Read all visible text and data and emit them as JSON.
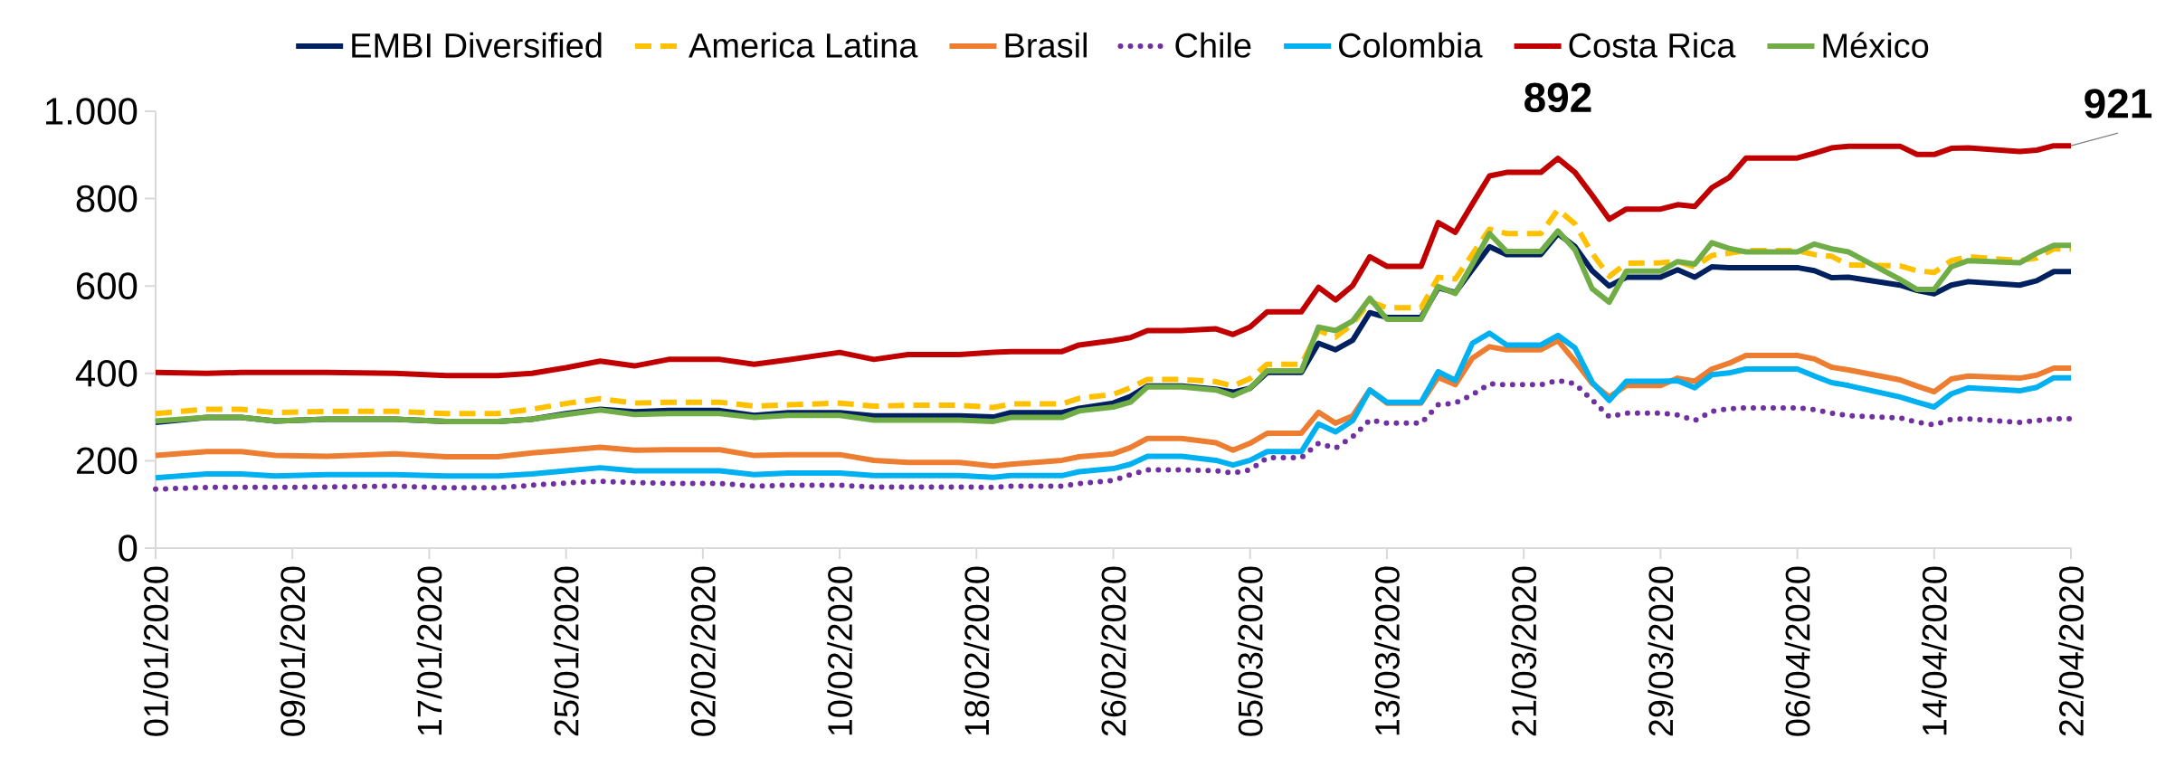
{
  "chart_data": {
    "type": "line",
    "x": [
      "2020-01-01",
      "2020-01-04",
      "2020-01-06",
      "2020-01-08",
      "2020-01-11",
      "2020-01-15",
      "2020-01-18",
      "2020-01-21",
      "2020-01-23",
      "2020-01-25",
      "2020-01-27",
      "2020-01-29",
      "2020-01-31",
      "2020-02-03",
      "2020-02-05",
      "2020-02-07",
      "2020-02-10",
      "2020-02-12",
      "2020-02-14",
      "2020-02-17",
      "2020-02-19",
      "2020-02-20",
      "2020-02-23",
      "2020-02-24",
      "2020-02-26",
      "2020-02-27",
      "2020-02-28",
      "2020-03-01",
      "2020-03-03",
      "2020-03-04",
      "2020-03-05",
      "2020-03-06",
      "2020-03-08",
      "2020-03-09",
      "2020-03-10",
      "2020-03-11",
      "2020-03-12",
      "2020-03-13",
      "2020-03-15",
      "2020-03-16",
      "2020-03-17",
      "2020-03-18",
      "2020-03-19",
      "2020-03-20",
      "2020-03-22",
      "2020-03-23",
      "2020-03-24",
      "2020-03-25",
      "2020-03-26",
      "2020-03-27",
      "2020-03-29",
      "2020-03-30",
      "2020-03-31",
      "2020-04-01",
      "2020-04-02",
      "2020-04-03",
      "2020-04-06",
      "2020-04-07",
      "2020-04-08",
      "2020-04-09",
      "2020-04-12",
      "2020-04-13",
      "2020-04-14",
      "2020-04-15",
      "2020-04-16",
      "2020-04-19",
      "2020-04-20",
      "2020-04-21",
      "2020-04-22"
    ],
    "series": [
      {
        "name": "EMBI Diversified",
        "color": "#002060",
        "line_style": "solid",
        "values": [
          288,
          299,
          299,
          291,
          295,
          295,
          290,
          290,
          295,
          308,
          318,
          312,
          315,
          315,
          304,
          310,
          310,
          303,
          303,
          303,
          300,
          310,
          310,
          320,
          332,
          347,
          371,
          371,
          364,
          357,
          366,
          402,
          402,
          469,
          454,
          476,
          539,
          528,
          528,
          596,
          585,
          638,
          690,
          672,
          672,
          720,
          690,
          635,
          600,
          620,
          620,
          637,
          620,
          644,
          642,
          642,
          642,
          635,
          619,
          620,
          602,
          590,
          582,
          602,
          610,
          602,
          612,
          633,
          633
        ]
      },
      {
        "name": "America Latina",
        "color": "#ffc000",
        "line_style": "dashed",
        "values": [
          308,
          318,
          318,
          310,
          313,
          313,
          308,
          308,
          318,
          331,
          342,
          332,
          334,
          334,
          325,
          328,
          332,
          325,
          327,
          327,
          322,
          330,
          330,
          343,
          352,
          367,
          386,
          386,
          381,
          371,
          388,
          421,
          421,
          498,
          483,
          513,
          565,
          550,
          550,
          620,
          616,
          673,
          730,
          720,
          720,
          775,
          742,
          675,
          622,
          652,
          653,
          656,
          644,
          670,
          675,
          681,
          681,
          672,
          668,
          648,
          646,
          635,
          631,
          658,
          667,
          658,
          664,
          685,
          685
        ]
      },
      {
        "name": "Brasil",
        "color": "#ed7d31",
        "line_style": "solid",
        "values": [
          212,
          221,
          221,
          212,
          210,
          216,
          209,
          209,
          218,
          224,
          231,
          224,
          225,
          225,
          212,
          214,
          214,
          201,
          196,
          196,
          188,
          192,
          201,
          209,
          216,
          230,
          251,
          251,
          241,
          224,
          240,
          263,
          263,
          311,
          286,
          303,
          362,
          332,
          332,
          391,
          374,
          435,
          461,
          454,
          454,
          475,
          428,
          377,
          346,
          372,
          372,
          389,
          382,
          410,
          423,
          441,
          441,
          433,
          414,
          408,
          385,
          371,
          358,
          387,
          394,
          389,
          396,
          412,
          412
        ]
      },
      {
        "name": "Chile",
        "color": "#7030a0",
        "line_style": "dotted",
        "values": [
          135,
          139,
          139,
          139,
          140,
          142,
          138,
          138,
          144,
          149,
          153,
          150,
          148,
          148,
          142,
          144,
          144,
          140,
          140,
          140,
          139,
          142,
          142,
          148,
          155,
          168,
          179,
          179,
          177,
          172,
          179,
          207,
          207,
          240,
          229,
          255,
          293,
          286,
          286,
          328,
          332,
          351,
          376,
          374,
          374,
          384,
          376,
          339,
          301,
          309,
          309,
          305,
          292,
          313,
          319,
          321,
          321,
          317,
          309,
          303,
          298,
          288,
          282,
          295,
          296,
          288,
          292,
          296,
          296
        ]
      },
      {
        "name": "Colombia",
        "color": "#00b0f0",
        "line_style": "solid",
        "values": [
          161,
          170,
          170,
          165,
          168,
          168,
          165,
          165,
          170,
          177,
          184,
          177,
          177,
          177,
          168,
          172,
          172,
          166,
          166,
          166,
          162,
          166,
          166,
          175,
          182,
          192,
          210,
          210,
          201,
          190,
          201,
          221,
          221,
          284,
          266,
          292,
          362,
          334,
          334,
          404,
          384,
          469,
          492,
          465,
          465,
          487,
          458,
          380,
          338,
          382,
          382,
          383,
          367,
          397,
          401,
          410,
          410,
          394,
          379,
          372,
          346,
          334,
          323,
          353,
          367,
          360,
          368,
          390,
          390
        ]
      },
      {
        "name": "Costa Rica",
        "color": "#c00000",
        "line_style": "solid",
        "values": [
          402,
          400,
          402,
          402,
          402,
          400,
          395,
          395,
          400,
          413,
          428,
          417,
          432,
          432,
          421,
          431,
          448,
          432,
          443,
          443,
          448,
          450,
          450,
          465,
          475,
          482,
          498,
          498,
          502,
          489,
          506,
          541,
          541,
          597,
          568,
          601,
          667,
          645,
          645,
          745,
          723,
          788,
          852,
          860,
          860,
          892,
          860,
          808,
          753,
          776,
          776,
          786,
          782,
          825,
          848,
          893,
          893,
          904,
          916,
          920,
          920,
          901,
          901,
          915,
          916,
          908,
          911,
          921,
          921
        ]
      },
      {
        "name": "México",
        "color": "#70ad47",
        "line_style": "solid",
        "values": [
          291,
          299,
          299,
          291,
          295,
          295,
          290,
          290,
          295,
          306,
          316,
          306,
          308,
          308,
          299,
          304,
          304,
          293,
          293,
          293,
          290,
          299,
          299,
          314,
          323,
          334,
          369,
          369,
          362,
          349,
          366,
          406,
          406,
          506,
          498,
          520,
          572,
          524,
          524,
          599,
          583,
          650,
          720,
          679,
          679,
          726,
          683,
          594,
          563,
          634,
          634,
          656,
          650,
          699,
          686,
          678,
          678,
          696,
          685,
          678,
          615,
          592,
          592,
          644,
          658,
          653,
          675,
          693,
          693
        ]
      }
    ],
    "xlim": [
      "2020-01-01",
      "2020-04-22"
    ],
    "xticks": [
      {
        "value": "2020-01-01",
        "label": "01/01/2020"
      },
      {
        "value": "2020-01-09",
        "label": "09/01/2020"
      },
      {
        "value": "2020-01-17",
        "label": "17/01/2020"
      },
      {
        "value": "2020-01-25",
        "label": "25/01/2020"
      },
      {
        "value": "2020-02-02",
        "label": "02/02/2020"
      },
      {
        "value": "2020-02-10",
        "label": "10/02/2020"
      },
      {
        "value": "2020-02-18",
        "label": "18/02/2020"
      },
      {
        "value": "2020-02-26",
        "label": "26/02/2020"
      },
      {
        "value": "2020-03-05",
        "label": "05/03/2020"
      },
      {
        "value": "2020-03-13",
        "label": "13/03/2020"
      },
      {
        "value": "2020-03-21",
        "label": "21/03/2020"
      },
      {
        "value": "2020-03-29",
        "label": "29/03/2020"
      },
      {
        "value": "2020-04-06",
        "label": "06/04/2020"
      },
      {
        "value": "2020-04-14",
        "label": "14/04/2020"
      },
      {
        "value": "2020-04-22",
        "label": "22/04/2020"
      }
    ],
    "ylim": [
      0,
      1000
    ],
    "yticks": [
      0,
      200,
      400,
      600,
      800,
      {
        "value": 1000,
        "label": "1.000"
      }
    ],
    "annotations": [
      {
        "text": "892",
        "x": "2020-03-23",
        "y": 892
      },
      {
        "text": "921",
        "x": "2020-04-22",
        "y": 921
      }
    ],
    "legend": "top",
    "grid": false,
    "marker": "none"
  }
}
